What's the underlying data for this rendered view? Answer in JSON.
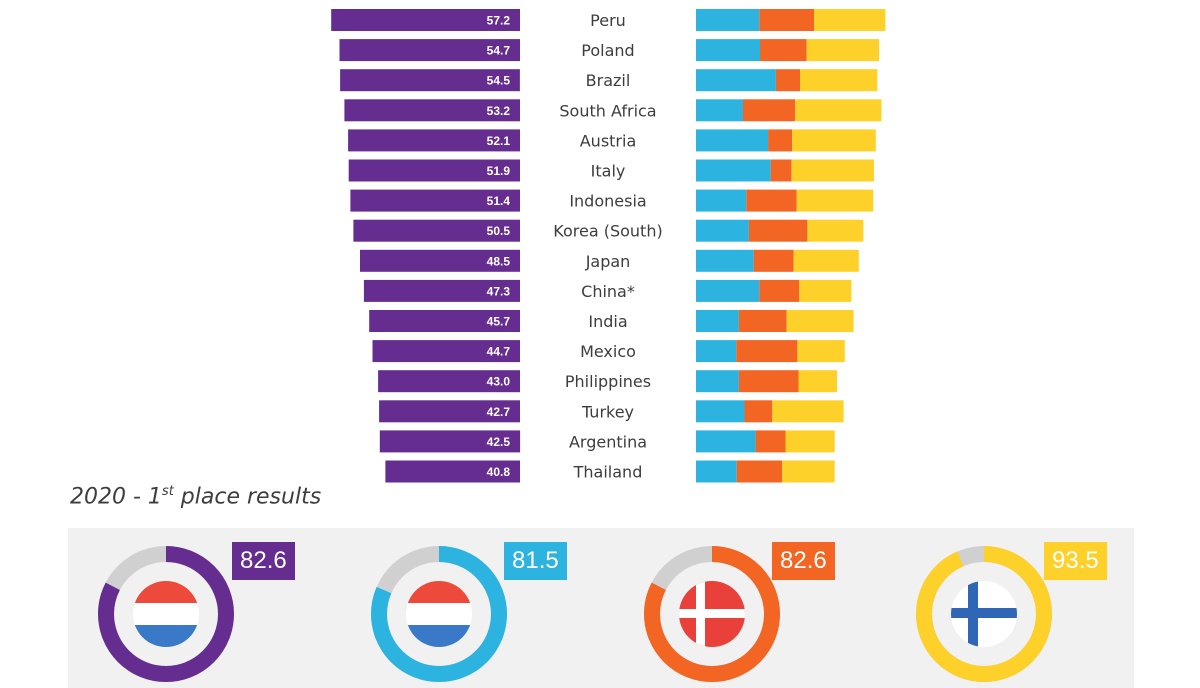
{
  "chart_data": {
    "type": "bar",
    "categories": [
      "Peru",
      "Poland",
      "Brazil",
      "South Africa",
      "Austria",
      "Italy",
      "Indonesia",
      "Korea (South)",
      "Japan",
      "China*",
      "India",
      "Mexico",
      "Philippines",
      "Turkey",
      "Argentina",
      "Thailand"
    ],
    "values": [
      57.2,
      54.7,
      54.5,
      53.2,
      52.1,
      51.9,
      51.4,
      50.5,
      48.5,
      47.3,
      45.7,
      44.7,
      43.0,
      42.7,
      42.5,
      40.8
    ],
    "value_labels": [
      "57.2",
      "54.7",
      "54.5",
      "53.2",
      "52.1",
      "51.9",
      "51.4",
      "50.5",
      "48.5",
      "47.3",
      "45.7",
      "44.7",
      "43.0",
      "42.7",
      "42.5",
      "40.8"
    ],
    "breakdown": {
      "type": "stacked-bar",
      "colors": [
        "#2db3e0",
        "#f26522",
        "#fdd12a"
      ],
      "rows": [
        [
          17.1,
          14.8,
          19.3
        ],
        [
          17.3,
          12.6,
          19.6
        ],
        [
          21.6,
          6.5,
          20.9
        ],
        [
          12.7,
          14.1,
          23.3
        ],
        [
          19.5,
          6.5,
          22.6
        ],
        [
          20.2,
          5.6,
          22.3
        ],
        [
          13.6,
          13.6,
          20.7
        ],
        [
          14.3,
          15.8,
          15.1
        ],
        [
          15.6,
          10.8,
          17.6
        ],
        [
          17.1,
          10.8,
          14.1
        ],
        [
          11.6,
          12.9,
          18.1
        ],
        [
          10.9,
          16.5,
          12.8
        ],
        [
          11.6,
          16.1,
          10.4
        ],
        [
          13.1,
          7.5,
          19.3
        ],
        [
          16.1,
          8.1,
          13.3
        ],
        [
          11.0,
          12.3,
          14.2
        ]
      ]
    }
  },
  "section": {
    "title_main": "2020 - 1",
    "title_sup": "st",
    "title_tail": " place results"
  },
  "first_place": [
    {
      "score": 82.6,
      "score_label": "82.6",
      "color": "#662d91",
      "flag": "netherlands-flag"
    },
    {
      "score": 81.5,
      "score_label": "81.5",
      "color": "#2db3e0",
      "flag": "netherlands-flag"
    },
    {
      "score": 82.6,
      "score_label": "82.6",
      "color": "#f26522",
      "flag": "denmark-flag"
    },
    {
      "score": 93.5,
      "score_label": "93.5",
      "color": "#fdd12a",
      "flag": "finland-flag"
    }
  ],
  "colors": {
    "purple": "#662d91",
    "blue": "#2db3e0",
    "orange": "#f26522",
    "yellow": "#fdd12a",
    "ring_track": "#d0d0d0",
    "panel": "#f1f1f1"
  }
}
